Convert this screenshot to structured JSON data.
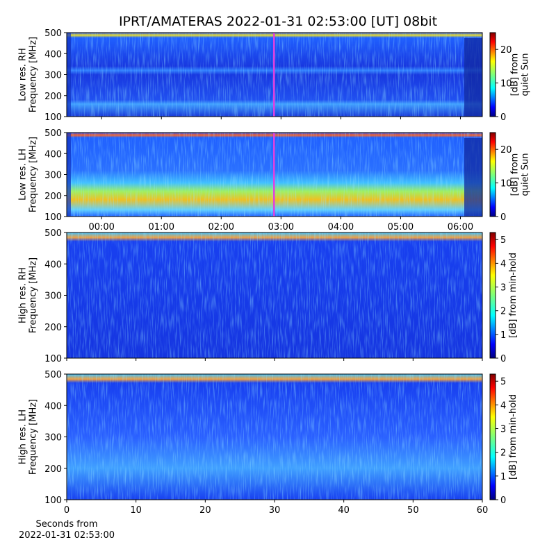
{
  "title": "IPRT/AMATERAS 2022-01-31 02:53:00 [UT]   08bit",
  "chart_data": [
    {
      "type": "heatmap",
      "ylabel": [
        "Low res. RH",
        "Frequency [MHz]"
      ],
      "xlim": [
        -35,
        382
      ],
      "ylim": [
        100,
        500
      ],
      "yticks": [
        100,
        200,
        300,
        400,
        500
      ],
      "marker_x": 173,
      "marker_color": "#e040e0",
      "colorbar": {
        "label": [
          "[dB] from",
          "quiet Sun"
        ],
        "lim": [
          0,
          25
        ],
        "ticks": [
          0,
          10,
          20
        ]
      }
    },
    {
      "type": "heatmap",
      "ylabel": [
        "Low res. LH",
        "Frequency [MHz]"
      ],
      "xlim": [
        -35,
        382
      ],
      "ylim": [
        100,
        500
      ],
      "yticks": [
        100,
        200,
        300,
        400,
        500
      ],
      "xticks": [
        {
          "value": 0,
          "label": "00:00"
        },
        {
          "value": 60,
          "label": "01:00"
        },
        {
          "value": 120,
          "label": "02:00"
        },
        {
          "value": 180,
          "label": "03:00"
        },
        {
          "value": 240,
          "label": "04:00"
        },
        {
          "value": 300,
          "label": "05:00"
        },
        {
          "value": 360,
          "label": "06:00"
        }
      ],
      "marker_x": 173,
      "marker_color": "#e040e0",
      "colorbar": {
        "label": [
          "[dB] from",
          "quiet Sun"
        ],
        "lim": [
          0,
          25
        ],
        "ticks": [
          0,
          10,
          20
        ]
      }
    },
    {
      "type": "heatmap",
      "ylabel": [
        "High res. RH",
        "Frequency [MHz]"
      ],
      "xlim": [
        0,
        60
      ],
      "ylim": [
        100,
        500
      ],
      "yticks": [
        100,
        200,
        300,
        400,
        500
      ],
      "colorbar": {
        "label": [
          "[dB] from min-hold"
        ],
        "lim": [
          0,
          5.3
        ],
        "ticks": [
          0,
          1,
          2,
          3,
          4,
          5
        ]
      }
    },
    {
      "type": "heatmap",
      "ylabel": [
        "High res. LH",
        "Frequency [MHz]"
      ],
      "xlim": [
        0,
        60
      ],
      "ylim": [
        100,
        500
      ],
      "yticks": [
        100,
        200,
        300,
        400,
        500
      ],
      "xticks": [
        0,
        10,
        20,
        30,
        40,
        50,
        60
      ],
      "xlabel": [
        "Seconds from",
        "2022-01-31 02:53:00"
      ],
      "colorbar": {
        "label": [
          "[dB] from min-hold"
        ],
        "lim": [
          0,
          5.3
        ],
        "ticks": [
          0,
          1,
          2,
          3,
          4,
          5
        ]
      }
    }
  ]
}
